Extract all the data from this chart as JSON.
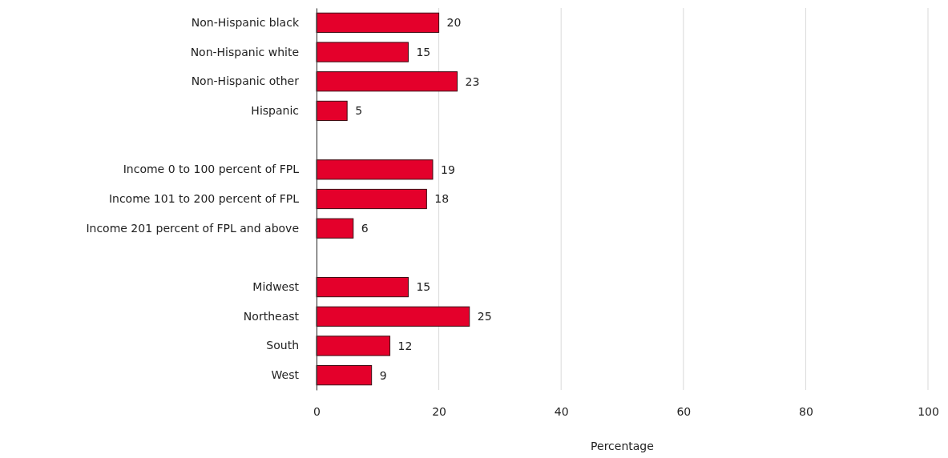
{
  "chart_data": {
    "type": "bar",
    "orientation": "horizontal",
    "xlabel": "Percentage",
    "categories": [
      "Non-Hispanic black",
      "Non-Hispanic white",
      "Non-Hispanic other",
      "Hispanic",
      null,
      "Income 0 to 100 percent of FPL",
      "Income 101 to 200 percent of FPL",
      "Income 201 percent of FPL and above",
      null,
      "Midwest",
      "Northeast",
      "South",
      "West"
    ],
    "values": [
      20,
      15,
      23,
      5,
      null,
      19,
      18,
      6,
      null,
      15,
      25,
      12,
      9
    ],
    "color": "#e4002b",
    "xlim": [
      0,
      100
    ],
    "xticks": [
      0,
      20,
      40,
      60,
      80,
      100
    ],
    "grid": "x",
    "data_labels": true
  }
}
